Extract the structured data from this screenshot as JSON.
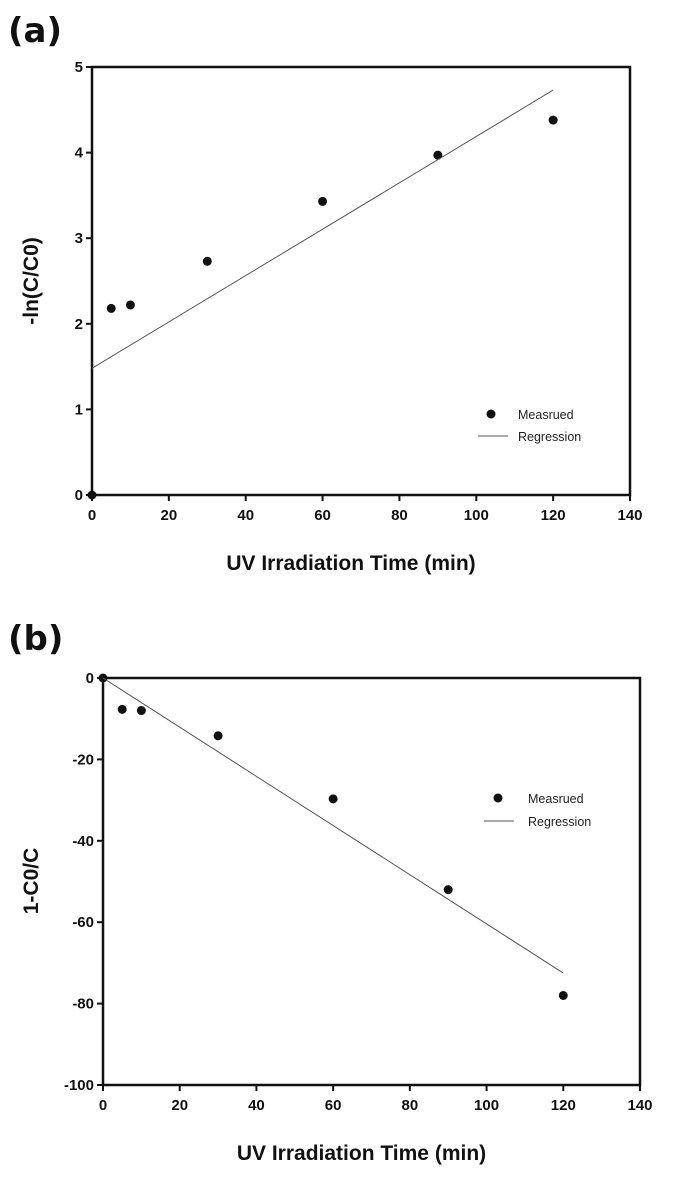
{
  "chart_data": [
    {
      "type": "scatter",
      "panel_label": "(a)",
      "xlabel": "UV Irradiation Time (min)",
      "ylabel": "-ln(C/C0)",
      "xlim": [
        0,
        140
      ],
      "ylim": [
        0,
        5
      ],
      "xticks": [
        "0",
        "20",
        "40",
        "60",
        "80",
        "100",
        "120",
        "140"
      ],
      "yticks": [
        "0",
        "1",
        "2",
        "3",
        "4",
        "5"
      ],
      "legend": {
        "position": "bottom-right",
        "entries": [
          "Measrued",
          "Regression"
        ]
      },
      "series": [
        {
          "name": "Measrued",
          "kind": "points",
          "x": [
            0,
            5,
            10,
            30,
            60,
            90,
            120
          ],
          "y": [
            0,
            2.18,
            2.22,
            2.73,
            3.43,
            3.97,
            4.38
          ]
        },
        {
          "name": "Regression",
          "kind": "line",
          "x": [
            0,
            120
          ],
          "y": [
            1.48,
            4.73
          ]
        }
      ],
      "grid": false
    },
    {
      "type": "scatter",
      "panel_label": "(b)",
      "xlabel": "UV Irradiation Time (min)",
      "ylabel": "1-C0/C",
      "xlim": [
        0,
        140
      ],
      "ylim": [
        -100,
        0
      ],
      "xticks": [
        "0",
        "20",
        "40",
        "60",
        "80",
        "100",
        "120",
        "140"
      ],
      "yticks": [
        "0",
        "-20",
        "-40",
        "-60",
        "-80",
        "-100"
      ],
      "legend": {
        "position": "top-right",
        "entries": [
          "Measrued",
          "Regression"
        ]
      },
      "series": [
        {
          "name": "Measrued",
          "kind": "points",
          "x": [
            0,
            5,
            10,
            30,
            60,
            90,
            120
          ],
          "y": [
            0,
            -7.7,
            -8,
            -14.2,
            -29.7,
            -52,
            -78
          ]
        },
        {
          "name": "Regression",
          "kind": "line",
          "x": [
            0,
            120
          ],
          "y": [
            0,
            -72.5
          ]
        }
      ],
      "grid": false
    }
  ]
}
